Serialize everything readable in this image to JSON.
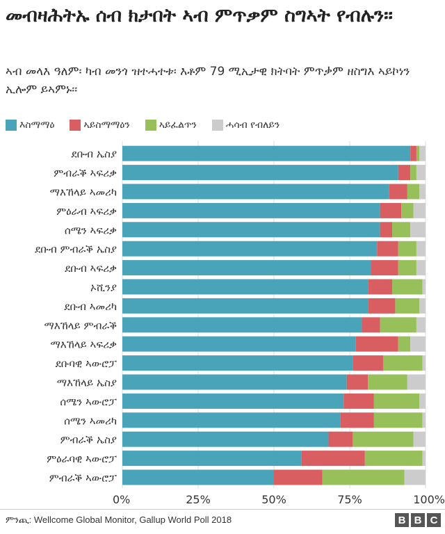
{
  "header": {
    "title": "መብዛሕትኡ ሰብ ክታበት ኣብ ምጥቃም ስግኣት የብሉን፡፡",
    "subtitle": "ኣብ መላእ ዓለም፡ ካብ መንጎ  ዝተሓተቱ፡ እቶም 79 ሚኢታዊ ክትባት ምጥቃም ዘስግእ ኣይኮነን ኢሎም ይኣምኑ፡፡"
  },
  "footer": {
    "source": "ምንጪ: Wellcome Global Monitor, Gallup World Poll 2018",
    "logo": [
      "B",
      "B",
      "C"
    ]
  },
  "colors": {
    "agree": "#4aa4b9",
    "disagree": "#d85e62",
    "neutral": "#97bf5a",
    "dontknow": "#cccccc"
  },
  "chart_data": {
    "type": "bar",
    "orientation": "horizontal",
    "stacked": true,
    "percent_stacked": true,
    "categories": [
      "ደቡብ ኤስያ",
      "ምብራቕ ኣፍሪቃ",
      "ማእኸላይ ኣመሪካ",
      "ምዕራብ ኣፍሪቃ",
      "ሰሜን ኣፍሪቃ",
      "ደቡብ ምብራቕ ኤስያ",
      "ደቡብ ኣፍሪቃ",
      "ኦሺንያ",
      "ደቡብ ኣመሪካ",
      "ማእኸላይ ምብራቕ",
      "ማእኸላይ ኣፍሪቃ",
      "ደቡባዊ ኣውሮፓ",
      "ማእኸላይ ኤስያ",
      "ሰሜን ኣውሮፓ",
      "ሰሜን ኣመሪካ",
      "ምብራቕ ኤስያ",
      "ምዕራባዊ ኣውሮፓ",
      "ምብራቕ ኣውሮፓ"
    ],
    "series": [
      {
        "name": "እስማማዕ",
        "color": "#4aa4b9",
        "values": [
          95,
          91,
          88,
          85,
          85,
          84,
          82,
          81,
          81,
          79,
          77,
          76,
          74,
          73,
          72,
          68,
          59,
          50
        ]
      },
      {
        "name": "ኣይስማማዕን",
        "color": "#d85e62",
        "values": [
          2,
          4,
          6,
          7,
          4,
          7,
          9,
          8,
          9,
          6,
          14,
          10,
          7,
          10,
          11,
          8,
          21,
          16
        ]
      },
      {
        "name": "ኣይፈልጥን",
        "color": "#97bf5a",
        "values": [
          1,
          2,
          4,
          4,
          6,
          6,
          6,
          10,
          8,
          12,
          4,
          13,
          13,
          15,
          16,
          20,
          19,
          27
        ]
      },
      {
        "name": "ሓሳብ የብለይን",
        "color": "#cccccc",
        "values": [
          2,
          3,
          2,
          4,
          5,
          3,
          3,
          1,
          2,
          3,
          5,
          1,
          6,
          2,
          1,
          4,
          1,
          7
        ]
      }
    ],
    "xlim": [
      0,
      100
    ],
    "xticks": [
      "0%",
      "25%",
      "50%",
      "75%",
      "100%"
    ],
    "grid": true,
    "legend": "top"
  }
}
